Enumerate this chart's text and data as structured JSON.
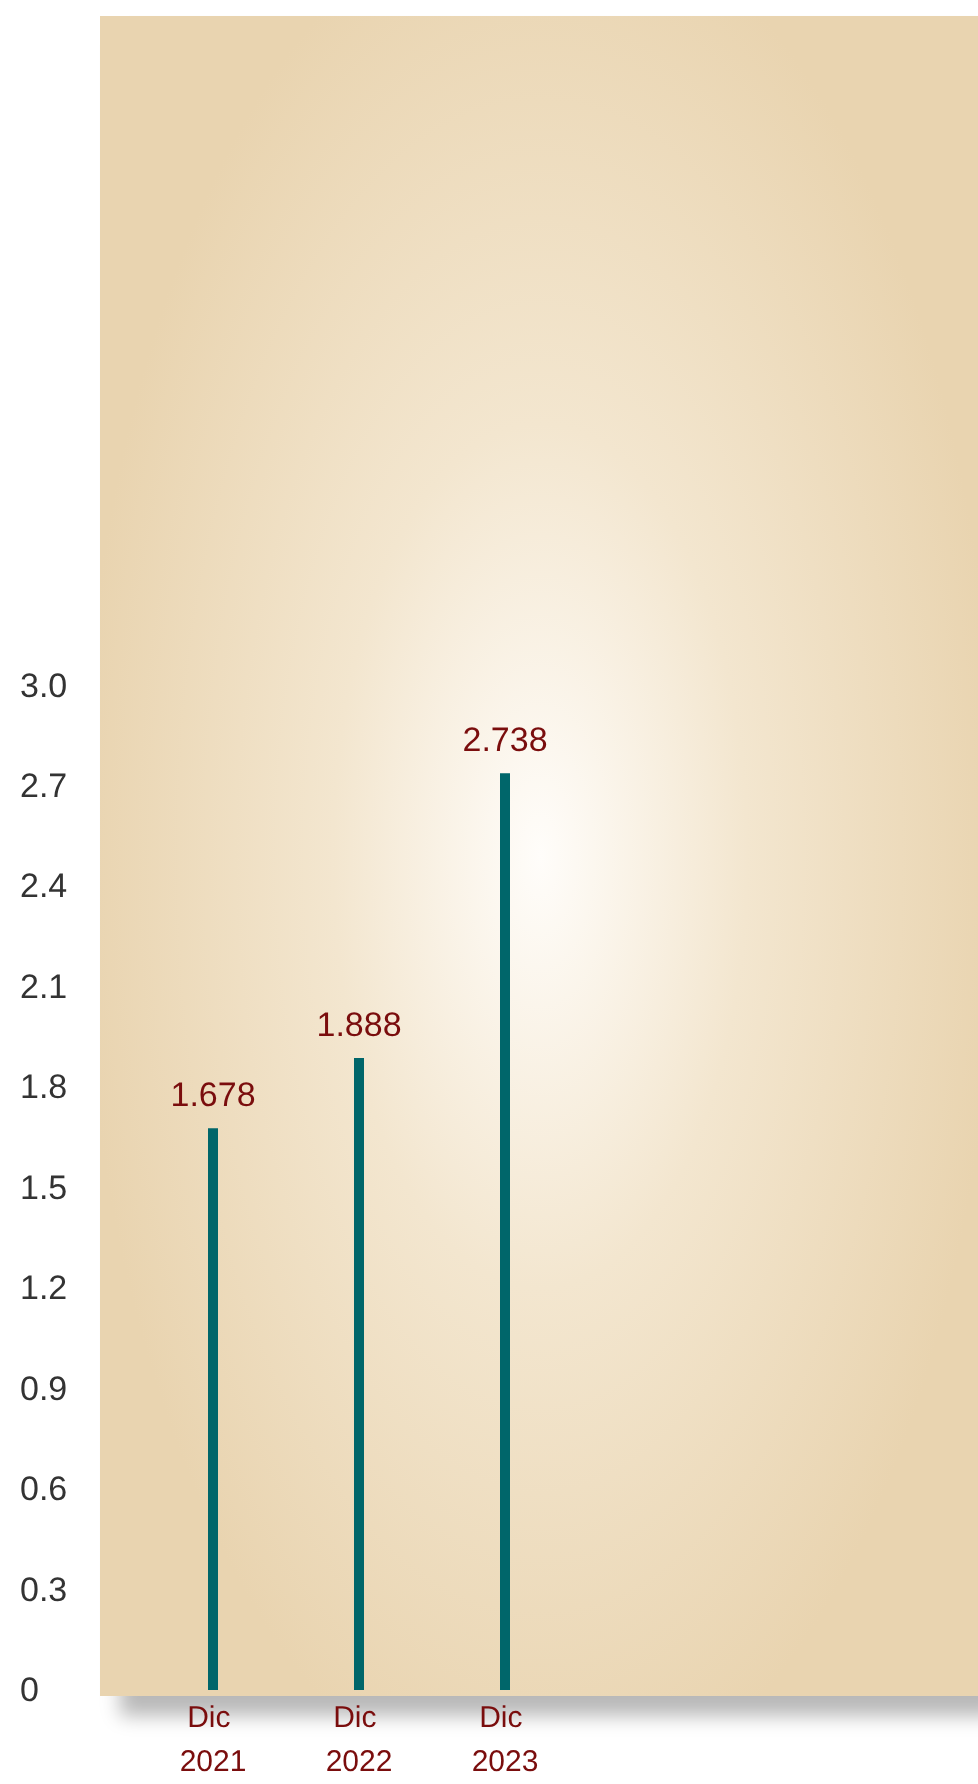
{
  "chart_data": {
    "type": "bar",
    "categories": [
      "Dic 2021",
      "Dic 2022",
      "Dic 2023"
    ],
    "values": [
      1.678,
      1.888,
      2.738
    ],
    "color": "#00666a",
    "data_labels": true,
    "ylim": [
      0,
      5
    ],
    "yticks": [
      0,
      0.3,
      0.6,
      0.9,
      1.2,
      1.5,
      1.8,
      2.1,
      2.4,
      2.7,
      {
        "value": 3,
        "label": "3.0"
      }
    ],
    "grid": false
  }
}
